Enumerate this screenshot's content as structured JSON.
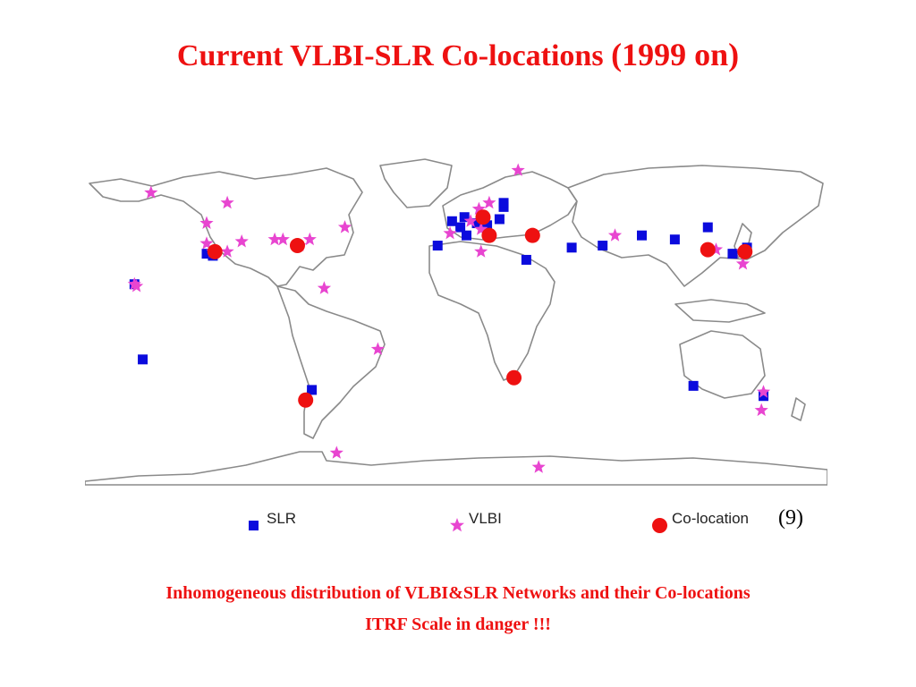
{
  "title": {
    "main": "Current VLBI-SLR Co-locations",
    "year": "(1999 on)",
    "color": "#ee1111"
  },
  "legend": {
    "slr": "SLR",
    "vlbi": "VLBI",
    "colocation": "Co-location",
    "colocation_count": "(9)"
  },
  "footer": {
    "line1": "Inhomogeneous distribution of VLBI&SLR Networks and their Co-locations",
    "line2": "ITRF Scale in danger !!!",
    "color": "#ee1111"
  },
  "colors": {
    "slr": "#0b0bdd",
    "vlbi": "#e845d0",
    "colocation": "#ee1111",
    "coastline": "#8a8a8a"
  },
  "map_data": {
    "projection": "equirectangular",
    "lon_range": [
      -180,
      180
    ],
    "lat_range": [
      -80,
      85
    ],
    "slr_sites": [
      [
        -156,
        20
      ],
      [
        -121,
        35
      ],
      [
        -118,
        34
      ],
      [
        -152,
        -17
      ],
      [
        -70,
        -32
      ],
      [
        -9,
        39
      ],
      [
        5,
        44
      ],
      [
        -2,
        51
      ],
      [
        2,
        48
      ],
      [
        4,
        53
      ],
      [
        10,
        50
      ],
      [
        15,
        49
      ],
      [
        21,
        52
      ],
      [
        23,
        58
      ],
      [
        23,
        60
      ],
      [
        34,
        32
      ],
      [
        56,
        38
      ],
      [
        71,
        39
      ],
      [
        90,
        44
      ],
      [
        106,
        42
      ],
      [
        122,
        48
      ],
      [
        134,
        35
      ],
      [
        141,
        38
      ],
      [
        115,
        -30
      ],
      [
        149,
        -35
      ]
    ],
    "vlbi_sites": [
      [
        -148,
        65
      ],
      [
        -111,
        60
      ],
      [
        -121,
        50
      ],
      [
        -121,
        40
      ],
      [
        -118,
        36
      ],
      [
        -104,
        41
      ],
      [
        -76,
        39
      ],
      [
        -71,
        42
      ],
      [
        -84,
        42
      ],
      [
        -54,
        48
      ],
      [
        -64,
        18
      ],
      [
        -156,
        20
      ],
      [
        -155,
        19
      ],
      [
        -38,
        -12
      ],
      [
        -58,
        -63
      ],
      [
        30,
        76
      ],
      [
        11,
        57
      ],
      [
        16,
        60
      ],
      [
        7,
        51
      ],
      [
        12,
        47
      ],
      [
        -3,
        45
      ],
      [
        12,
        36
      ],
      [
        77,
        44
      ],
      [
        126,
        37
      ],
      [
        139,
        36
      ],
      [
        139,
        30
      ],
      [
        149,
        -33
      ],
      [
        148,
        -42
      ],
      [
        40,
        -70
      ],
      [
        -111,
        36
      ],
      [
        -88,
        42
      ]
    ],
    "colocation_sites": [
      [
        -117,
        36
      ],
      [
        -77,
        39
      ],
      [
        13,
        53
      ],
      [
        16,
        44
      ],
      [
        37,
        44
      ],
      [
        28,
        -26
      ],
      [
        -73,
        -37
      ],
      [
        122,
        37
      ],
      [
        140,
        36
      ]
    ]
  }
}
